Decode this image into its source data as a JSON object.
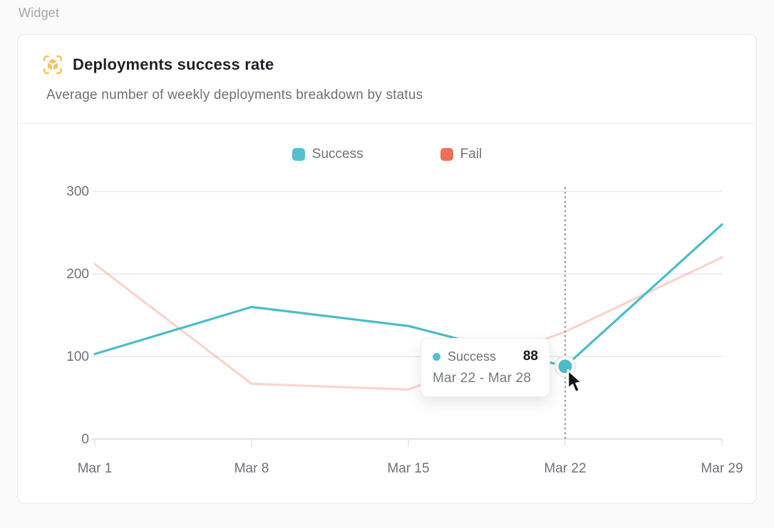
{
  "page": {
    "label": "Widget"
  },
  "card": {
    "icon": "cube-scan-icon",
    "icon_color": "#ecc75b",
    "title": "Deployments success rate",
    "subtitle": "Average number of weekly deployments breakdown by status"
  },
  "legend": {
    "position": "top",
    "items": [
      {
        "label": "Success",
        "color": "#54c0cc"
      },
      {
        "label": "Fail",
        "color": "#ed7157"
      }
    ]
  },
  "tooltip": {
    "series": "Success",
    "value": "88",
    "range": "Mar 22 - Mar 28",
    "dot_color": "#54c0cc"
  },
  "chart_data": {
    "type": "line",
    "x": [
      "Mar 1",
      "Mar 8",
      "Mar 15",
      "Mar 22",
      "Mar 29"
    ],
    "series": [
      {
        "name": "Success",
        "color": "#4bbcc9",
        "dimmed": false,
        "values": [
          103,
          160,
          137,
          88,
          260
        ]
      },
      {
        "name": "Fail",
        "color": "#ed7157",
        "dimmed": true,
        "values": [
          212,
          67,
          60,
          130,
          220
        ]
      }
    ],
    "y_ticks": [
      0,
      100,
      200,
      300
    ],
    "ylim": [
      0,
      300
    ],
    "grid": "horizontal",
    "legend_position": "top",
    "highlight": {
      "series": "Success",
      "x_index": 3,
      "x_label": "Mar 22",
      "value": 88
    },
    "colors": {
      "gridline": "#e9e9e9",
      "axis_line": "#dcdcdc",
      "tick_label": "#6d7278",
      "crosshair": "#4b5563"
    }
  }
}
